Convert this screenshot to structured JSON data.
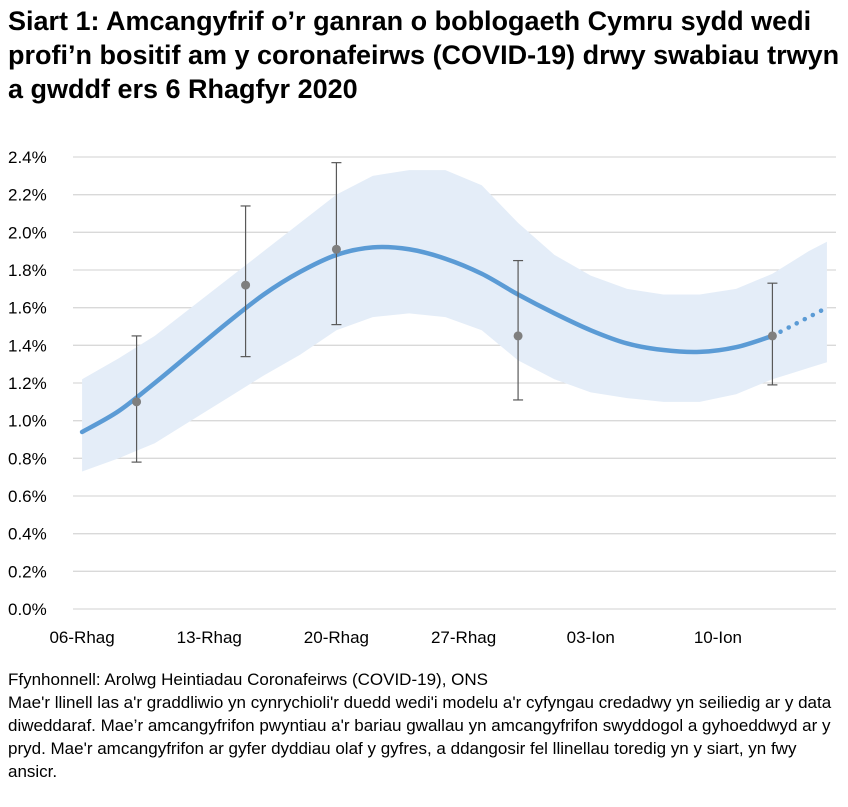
{
  "title": "Siart 1: Amcangyfrif o’r ganran o boblogaeth Cymru sydd wedi profi’n bositif am y coronafeirws (COVID-19) drwy swabiau trwyn a gwddf ers 6 Rhagfyr 2020",
  "source": "Ffynhonnell: Arolwg Heintiadau Coronafeirws (COVID-19), ONS",
  "note": "Mae'r llinell las a'r graddliwio yn cynrychioli'r duedd wedi'i modelu a'r cyfyngau credadwy yn seiliedig ar y data diweddaraf. Mae’r amcangyfrifon pwyntiau a'r bariau gwallau yn amcangyfrifon swyddogol a gyhoeddwyd ar y pryd. Mae'r amcangyfrifon ar gyfer dyddiau olaf y gyfres, a ddangosir fel llinellau toredig yn y siart, yn fwy ansicr.",
  "chart_data": {
    "type": "line",
    "ylim": [
      0,
      2.4
    ],
    "y_ticks": [
      "0.0%",
      "0.2%",
      "0.4%",
      "0.6%",
      "0.8%",
      "1.0%",
      "1.2%",
      "1.4%",
      "1.6%",
      "1.8%",
      "2.0%",
      "2.2%",
      "2.4%"
    ],
    "x_ticks": [
      "06-Rhag",
      "13-Rhag",
      "20-Rhag",
      "27-Rhag",
      "03-Ion",
      "10-Ion"
    ],
    "x_range": [
      "06-Rhag",
      "16-Ion"
    ],
    "grid": true,
    "colors": {
      "line": "#5b9bd5",
      "band": "#e4edf8",
      "points": "#7f7f7f",
      "error_bars": "#595959",
      "grid": "#d9d9d9"
    },
    "modelled_trend": {
      "dates": [
        "06-Rhag",
        "08-Rhag",
        "10-Rhag",
        "12-Rhag",
        "14-Rhag",
        "16-Rhag",
        "18-Rhag",
        "20-Rhag",
        "22-Rhag",
        "24-Rhag",
        "26-Rhag",
        "28-Rhag",
        "30-Rhag",
        "01-Ion",
        "03-Ion",
        "05-Ion",
        "07-Ion",
        "09-Ion",
        "11-Ion",
        "13-Ion",
        "14-Ion",
        "15-Ion",
        "16-Ion"
      ],
      "estimate": [
        0.94,
        1.05,
        1.2,
        1.36,
        1.52,
        1.67,
        1.79,
        1.88,
        1.92,
        1.91,
        1.86,
        1.78,
        1.67,
        1.57,
        1.48,
        1.41,
        1.375,
        1.365,
        1.39,
        1.45,
        1.5,
        1.55,
        1.6
      ],
      "upper": [
        1.22,
        1.33,
        1.45,
        1.6,
        1.75,
        1.9,
        2.05,
        2.2,
        2.3,
        2.33,
        2.33,
        2.25,
        2.05,
        1.88,
        1.77,
        1.7,
        1.67,
        1.67,
        1.7,
        1.78,
        1.84,
        1.9,
        1.95
      ],
      "lower": [
        0.73,
        0.8,
        0.88,
        1.0,
        1.12,
        1.24,
        1.35,
        1.48,
        1.55,
        1.57,
        1.55,
        1.48,
        1.32,
        1.22,
        1.15,
        1.12,
        1.1,
        1.1,
        1.14,
        1.22,
        1.25,
        1.28,
        1.31
      ],
      "dashed_from": "13-Ion"
    },
    "official_estimates": [
      {
        "date": "09-Rhag",
        "value": 1.1,
        "lower": 0.78,
        "upper": 1.45
      },
      {
        "date": "15-Rhag",
        "value": 1.72,
        "lower": 1.34,
        "upper": 2.14
      },
      {
        "date": "20-Rhag",
        "value": 1.91,
        "lower": 1.51,
        "upper": 2.37
      },
      {
        "date": "30-Rhag",
        "value": 1.45,
        "lower": 1.11,
        "upper": 1.85
      },
      {
        "date": "13-Ion",
        "value": 1.45,
        "lower": 1.19,
        "upper": 1.73
      }
    ]
  }
}
